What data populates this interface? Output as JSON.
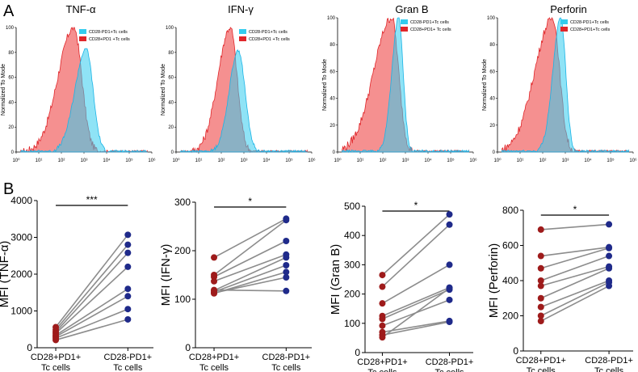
{
  "panel_a_label": "A",
  "panel_b_label": "B",
  "colors": {
    "red_fill": "#f26b6b",
    "red_line": "#e0262a",
    "cyan_fill": "#33ccee",
    "cyan_line": "#1ab4e6",
    "dot_red": "#9e1b1b",
    "dot_blue": "#1f2a8a",
    "pair_line": "#8c8c8c"
  },
  "chart_data": [
    {
      "type": "area",
      "panel": "A",
      "title": "TNF-α",
      "ylabel": "Normalized To Mode",
      "yticks": [
        "0",
        "20",
        "40",
        "60",
        "80",
        "100"
      ],
      "xticks": [
        "10⁰",
        "10¹",
        "10²",
        "10³",
        "10⁴",
        "10⁵",
        "10⁶"
      ],
      "xlim": [
        0,
        6
      ],
      "ylim": [
        0,
        100
      ],
      "legend": [
        "CD28-PD1+Tc cells",
        "CD28+PD1 +Tc cells"
      ],
      "series": [
        {
          "name": "CD28+PD1 +Tc cells",
          "peak_x": 2.55,
          "peak_y": 100,
          "width_left": 0.7,
          "width_right": 0.35
        },
        {
          "name": "CD28-PD1+Tc cells",
          "peak_x": 3.1,
          "peak_y": 83,
          "width_left": 0.5,
          "width_right": 0.3
        }
      ]
    },
    {
      "type": "area",
      "panel": "A",
      "title": "IFN-γ",
      "ylabel": "Normalized To Mode",
      "yticks": [
        "0",
        "20",
        "40",
        "60",
        "80",
        "100"
      ],
      "xticks": [
        "10⁰",
        "10¹",
        "10²",
        "10³",
        "10⁴",
        "10⁵",
        "10⁶"
      ],
      "xlim": [
        0,
        6
      ],
      "ylim": [
        0,
        100
      ],
      "legend": [
        "CD28-PD1+Tc cells",
        "CD28+PD1 +Tc cells"
      ],
      "series": [
        {
          "name": "CD28+PD1 +Tc cells",
          "peak_x": 2.4,
          "peak_y": 100,
          "width_left": 0.55,
          "width_right": 0.3
        },
        {
          "name": "CD28-PD1+Tc cells",
          "peak_x": 2.75,
          "peak_y": 82,
          "width_left": 0.4,
          "width_right": 0.3
        }
      ]
    },
    {
      "type": "area",
      "panel": "A",
      "title": "Gran B",
      "ylabel": "Normalized To Mode",
      "yticks": [
        "0",
        "20",
        "40",
        "60",
        "80",
        "100"
      ],
      "xticks": [
        "10⁰",
        "10¹",
        "10²",
        "10³",
        "10⁴",
        "10⁵",
        "10⁶"
      ],
      "xlim": [
        0,
        6
      ],
      "ylim": [
        0,
        100
      ],
      "legend": [
        "CD28-PD1+Tc cells",
        "CD28+PD1+ Tc cells"
      ],
      "series": [
        {
          "name": "CD28+PD1+ Tc cells",
          "peak_x": 2.4,
          "peak_y": 100,
          "width_left": 0.8,
          "width_right": 0.3
        },
        {
          "name": "CD28-PD1+Tc cells",
          "peak_x": 2.7,
          "peak_y": 100,
          "width_left": 0.3,
          "width_right": 0.2
        }
      ]
    },
    {
      "type": "area",
      "panel": "A",
      "title": "Perforin",
      "ylabel": "Normalized To Mode",
      "yticks": [
        "0",
        "20",
        "40",
        "60",
        "80",
        "100"
      ],
      "xticks": [
        "10⁰",
        "10¹",
        "10²",
        "10³",
        "10⁴",
        "10⁵",
        "10⁶"
      ],
      "xlim": [
        0,
        6
      ],
      "ylim": [
        0,
        100
      ],
      "legend": [
        "CD28-PD1+Tc cells",
        "CD28+PD1+Tc cells"
      ],
      "series": [
        {
          "name": "CD28+PD1+Tc cells",
          "peak_x": 2.45,
          "peak_y": 100,
          "width_left": 0.8,
          "width_right": 0.3
        },
        {
          "name": "CD28-PD1+Tc cells",
          "peak_x": 2.8,
          "peak_y": 100,
          "width_left": 0.35,
          "width_right": 0.22
        }
      ]
    },
    {
      "type": "scatter",
      "panel": "B",
      "ylabel": "MFI (TNF-α)",
      "ylim": [
        0,
        4000
      ],
      "yticks": [
        "0",
        "1000",
        "2000",
        "3000",
        "4000"
      ],
      "categories": [
        "CD28+PD1+\nTc cells",
        "CD28-PD1+\nTc cells"
      ],
      "significance": "***",
      "pairs": [
        [
          560,
          3070
        ],
        [
          490,
          2800
        ],
        [
          430,
          2580
        ],
        [
          390,
          2200
        ],
        [
          340,
          1600
        ],
        [
          300,
          1400
        ],
        [
          260,
          1050
        ],
        [
          210,
          770
        ]
      ]
    },
    {
      "type": "scatter",
      "panel": "B",
      "ylabel": "MFI (IFN-γ)",
      "ylim": [
        0,
        300
      ],
      "yticks": [
        "0",
        "100",
        "200",
        "300"
      ],
      "categories": [
        "CD28+PD1+\nTc cells",
        "CD28-PD1+\nTc cells"
      ],
      "significance": "*",
      "pairs": [
        [
          186,
          266
        ],
        [
          150,
          263
        ],
        [
          146,
          220
        ],
        [
          137,
          192
        ],
        [
          118,
          186
        ],
        [
          115,
          170
        ],
        [
          112,
          156
        ],
        [
          113,
          145
        ],
        [
          119,
          117
        ]
      ]
    },
    {
      "type": "scatter",
      "panel": "B",
      "ylabel": "MFI (Gran B)",
      "ylim": [
        0,
        500
      ],
      "yticks": [
        "0",
        "100",
        "200",
        "300",
        "400",
        "500"
      ],
      "categories": [
        "CD28+PD1+\nTc cells",
        "CD28-PD1+\nTc cells"
      ],
      "significance": "*",
      "pairs": [
        [
          265,
          472
        ],
        [
          225,
          437
        ],
        [
          168,
          300
        ],
        [
          125,
          222
        ],
        [
          115,
          215
        ],
        [
          92,
          180
        ],
        [
          70,
          108
        ],
        [
          60,
          105
        ],
        [
          52,
          220
        ]
      ]
    },
    {
      "type": "scatter",
      "panel": "B",
      "ylabel": "MFI (Perforin)",
      "ylim": [
        0,
        800
      ],
      "yticks": [
        "0",
        "200",
        "400",
        "600",
        "800"
      ],
      "categories": [
        "CD28+PD1+\nTc cells",
        "CD28-PD1+\nTc cells"
      ],
      "significance": "*",
      "pairs": [
        [
          690,
          720
        ],
        [
          540,
          590
        ],
        [
          470,
          585
        ],
        [
          400,
          540
        ],
        [
          370,
          480
        ],
        [
          300,
          470
        ],
        [
          250,
          400
        ],
        [
          200,
          390
        ],
        [
          170,
          370
        ]
      ]
    }
  ]
}
